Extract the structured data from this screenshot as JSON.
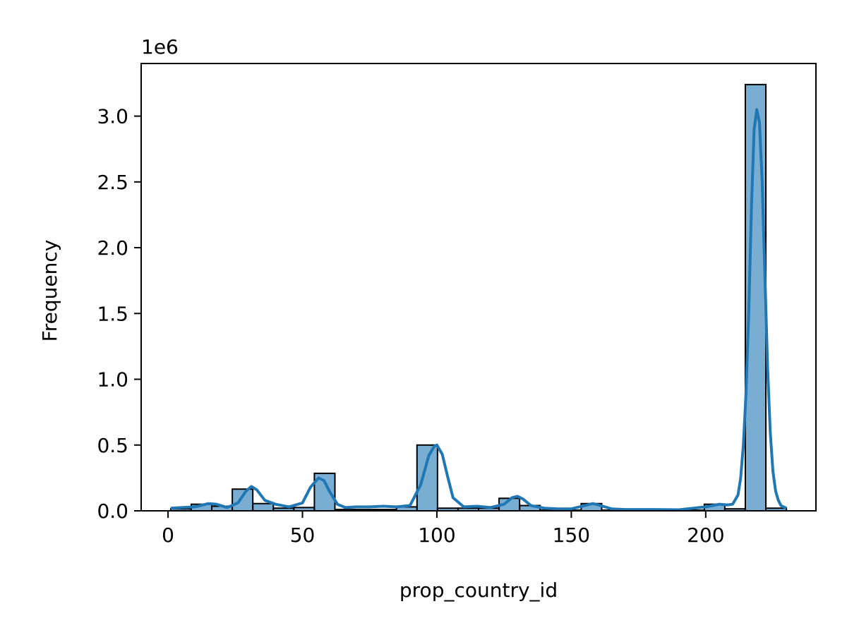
{
  "chart_data": {
    "type": "bar",
    "title": "",
    "xlabel": "prop_country_id",
    "ylabel": "Frequency",
    "y_offset_label": "1e6",
    "xlim": [
      -10,
      241
    ],
    "ylim": [
      0,
      3400000
    ],
    "xticks": [
      0,
      50,
      100,
      150,
      200
    ],
    "xtick_labels": [
      "0",
      "50",
      "100",
      "150",
      "200"
    ],
    "yticks": [
      0,
      500000,
      1000000,
      1500000,
      2000000,
      2500000,
      3000000
    ],
    "ytick_labels": [
      "0.0",
      "0.5",
      "1.0",
      "1.5",
      "2.0",
      "2.5",
      "3.0"
    ],
    "grid": false,
    "bar_color": "#1f77b4",
    "bar_alpha": 0.6,
    "edge_color": "#000000",
    "kde_color": "#1f77b4",
    "bins": [
      {
        "x0": 1.0,
        "x1": 8.63,
        "value": 15000
      },
      {
        "x0": 8.63,
        "x1": 16.27,
        "value": 50000
      },
      {
        "x0": 16.27,
        "x1": 23.9,
        "value": 35000
      },
      {
        "x0": 23.9,
        "x1": 31.53,
        "value": 165000
      },
      {
        "x0": 31.53,
        "x1": 39.17,
        "value": 55000
      },
      {
        "x0": 39.17,
        "x1": 46.8,
        "value": 20000
      },
      {
        "x0": 46.8,
        "x1": 54.43,
        "value": 25000
      },
      {
        "x0": 54.43,
        "x1": 62.07,
        "value": 285000
      },
      {
        "x0": 62.07,
        "x1": 69.7,
        "value": 10000
      },
      {
        "x0": 69.7,
        "x1": 77.33,
        "value": 10000
      },
      {
        "x0": 77.33,
        "x1": 84.97,
        "value": 10000
      },
      {
        "x0": 84.97,
        "x1": 92.6,
        "value": 30000
      },
      {
        "x0": 92.6,
        "x1": 100.23,
        "value": 500000
      },
      {
        "x0": 100.23,
        "x1": 107.87,
        "value": 20000
      },
      {
        "x0": 107.87,
        "x1": 115.5,
        "value": 20000
      },
      {
        "x0": 115.5,
        "x1": 123.13,
        "value": 20000
      },
      {
        "x0": 123.13,
        "x1": 130.77,
        "value": 95000
      },
      {
        "x0": 130.77,
        "x1": 138.4,
        "value": 40000
      },
      {
        "x0": 138.4,
        "x1": 146.03,
        "value": 5000
      },
      {
        "x0": 146.03,
        "x1": 153.67,
        "value": 5000
      },
      {
        "x0": 153.67,
        "x1": 161.3,
        "value": 55000
      },
      {
        "x0": 161.3,
        "x1": 168.93,
        "value": 5000
      },
      {
        "x0": 168.93,
        "x1": 176.57,
        "value": 5000
      },
      {
        "x0": 176.57,
        "x1": 184.2,
        "value": 5000
      },
      {
        "x0": 184.2,
        "x1": 191.83,
        "value": 5000
      },
      {
        "x0": 191.83,
        "x1": 199.47,
        "value": 5000
      },
      {
        "x0": 199.47,
        "x1": 207.1,
        "value": 50000
      },
      {
        "x0": 207.1,
        "x1": 214.73,
        "value": 15000
      },
      {
        "x0": 214.73,
        "x1": 222.37,
        "value": 3240000
      },
      {
        "x0": 222.37,
        "x1": 230.0,
        "value": 20000
      }
    ],
    "kde": {
      "x": [
        1,
        5,
        10,
        15,
        18,
        22,
        26,
        29,
        31,
        33,
        36,
        40,
        45,
        50,
        53,
        56,
        58,
        60,
        63,
        66,
        70,
        75,
        80,
        85,
        90,
        94,
        97,
        99,
        100,
        102,
        104,
        106,
        110,
        115,
        120,
        125,
        128,
        130,
        132,
        135,
        140,
        145,
        150,
        155,
        158,
        160,
        165,
        170,
        180,
        190,
        200,
        205,
        208,
        210,
        212,
        213,
        214,
        215,
        216,
        217,
        218,
        219,
        220,
        221,
        222,
        223,
        224,
        225,
        226,
        227,
        228,
        230
      ],
      "y": [
        20000,
        25000,
        30000,
        55000,
        50000,
        25000,
        60000,
        150000,
        185000,
        160000,
        80000,
        50000,
        30000,
        60000,
        180000,
        250000,
        230000,
        150000,
        50000,
        25000,
        30000,
        30000,
        35000,
        30000,
        40000,
        200000,
        420000,
        490000,
        500000,
        430000,
        260000,
        100000,
        30000,
        35000,
        25000,
        50000,
        100000,
        110000,
        90000,
        40000,
        20000,
        15000,
        15000,
        40000,
        55000,
        45000,
        15000,
        10000,
        10000,
        8000,
        30000,
        50000,
        45000,
        50000,
        120000,
        250000,
        500000,
        900000,
        1500000,
        2300000,
        2900000,
        3050000,
        2950000,
        2500000,
        1800000,
        1100000,
        600000,
        300000,
        150000,
        80000,
        40000,
        20000
      ]
    }
  }
}
